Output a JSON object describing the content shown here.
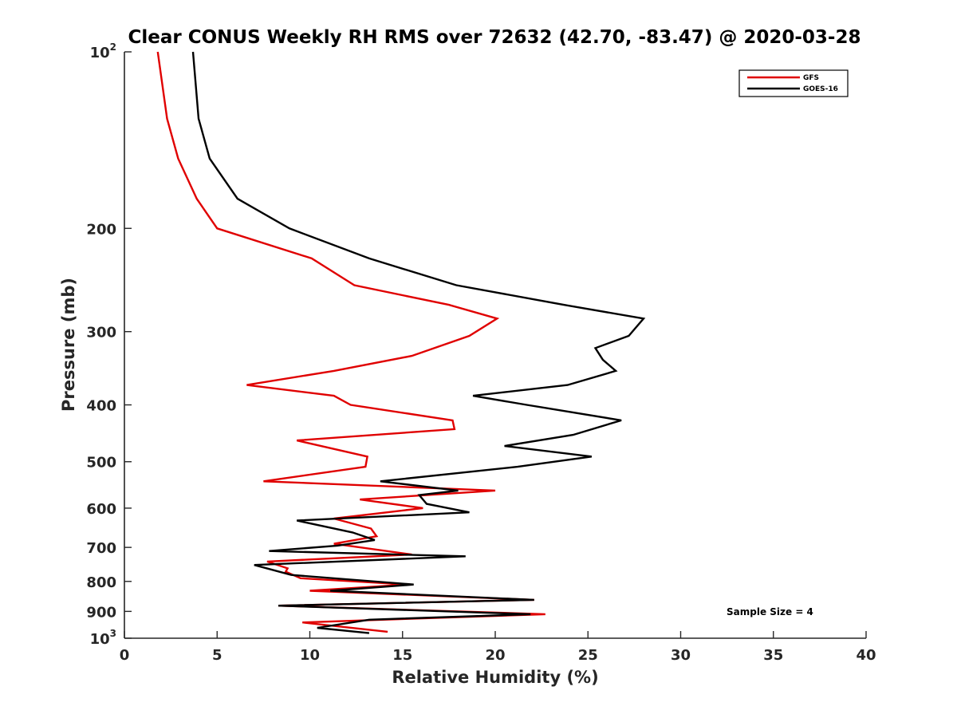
{
  "chart_data": {
    "type": "line",
    "title": "Clear CONUS Weekly RH RMS over 72632 (42.70, -83.47) @ 2020-03-28",
    "xlabel": "Relative Humidity (%)",
    "ylabel": "Pressure (mb)",
    "xlim": [
      0,
      40
    ],
    "ylim": [
      100,
      1000
    ],
    "y_scale": "log",
    "y_reversed": true,
    "x_ticks": [
      "0",
      "5",
      "10",
      "15",
      "20",
      "25",
      "30",
      "35",
      "40"
    ],
    "y_ticks": [
      {
        "value": 100,
        "label": "10",
        "sup": "2"
      },
      {
        "value": 200,
        "label": "200",
        "sup": ""
      },
      {
        "value": 300,
        "label": "300",
        "sup": ""
      },
      {
        "value": 400,
        "label": "400",
        "sup": ""
      },
      {
        "value": 500,
        "label": "500",
        "sup": ""
      },
      {
        "value": 600,
        "label": "600",
        "sup": ""
      },
      {
        "value": 700,
        "label": "700",
        "sup": ""
      },
      {
        "value": 800,
        "label": "800",
        "sup": ""
      },
      {
        "value": 900,
        "label": "900",
        "sup": ""
      },
      {
        "value": 1000,
        "label": "10",
        "sup": "3"
      }
    ],
    "grid": false,
    "legend_position": "top-right",
    "annotation": "Sample Size = 4",
    "series": [
      {
        "name": "GFS",
        "color": "#e00000",
        "x": [
          1.8,
          2.3,
          2.9,
          3.9,
          5.0,
          10.1,
          12.4,
          17.5,
          20.1,
          18.6,
          15.5,
          11.3,
          6.6,
          11.3,
          12.2,
          17.7,
          17.8,
          9.3,
          13.1,
          13.0,
          7.5,
          20.0,
          12.7,
          16.1,
          11.3,
          13.3,
          13.6,
          11.3,
          15.5,
          7.7,
          8.8,
          8.7,
          9.5,
          15.3,
          10.0,
          22.1,
          8.3,
          22.7,
          9.6,
          14.2
        ],
        "y": [
          100,
          130,
          152,
          178,
          200,
          225,
          250,
          270,
          285,
          305,
          330,
          350,
          370,
          386,
          400,
          425,
          440,
          460,
          490,
          510,
          540,
          560,
          580,
          600,
          625,
          650,
          670,
          690,
          720,
          740,
          760,
          770,
          790,
          810,
          830,
          860,
          880,
          910,
          940,
          975
        ]
      },
      {
        "name": "GOES-16",
        "color": "#000000",
        "x": [
          3.7,
          4.0,
          4.6,
          6.1,
          8.9,
          13.2,
          17.9,
          23.7,
          28.0,
          27.2,
          25.4,
          25.8,
          26.5,
          23.9,
          18.8,
          21.7,
          26.8,
          24.2,
          20.5,
          25.2,
          21.2,
          13.8,
          18.0,
          15.9,
          16.3,
          18.6,
          9.3,
          12.3,
          13.5,
          11.5,
          7.8,
          18.4,
          7.0,
          9.0,
          15.6,
          11.1,
          22.1,
          8.3,
          21.9,
          13.2,
          10.4,
          13.2
        ],
        "y": [
          100,
          130,
          152,
          178,
          200,
          225,
          250,
          270,
          285,
          305,
          320,
          335,
          350,
          370,
          386,
          400,
          425,
          450,
          470,
          490,
          510,
          540,
          560,
          570,
          590,
          610,
          630,
          660,
          680,
          695,
          710,
          725,
          750,
          780,
          810,
          830,
          860,
          880,
          910,
          930,
          960,
          980
        ]
      }
    ]
  }
}
